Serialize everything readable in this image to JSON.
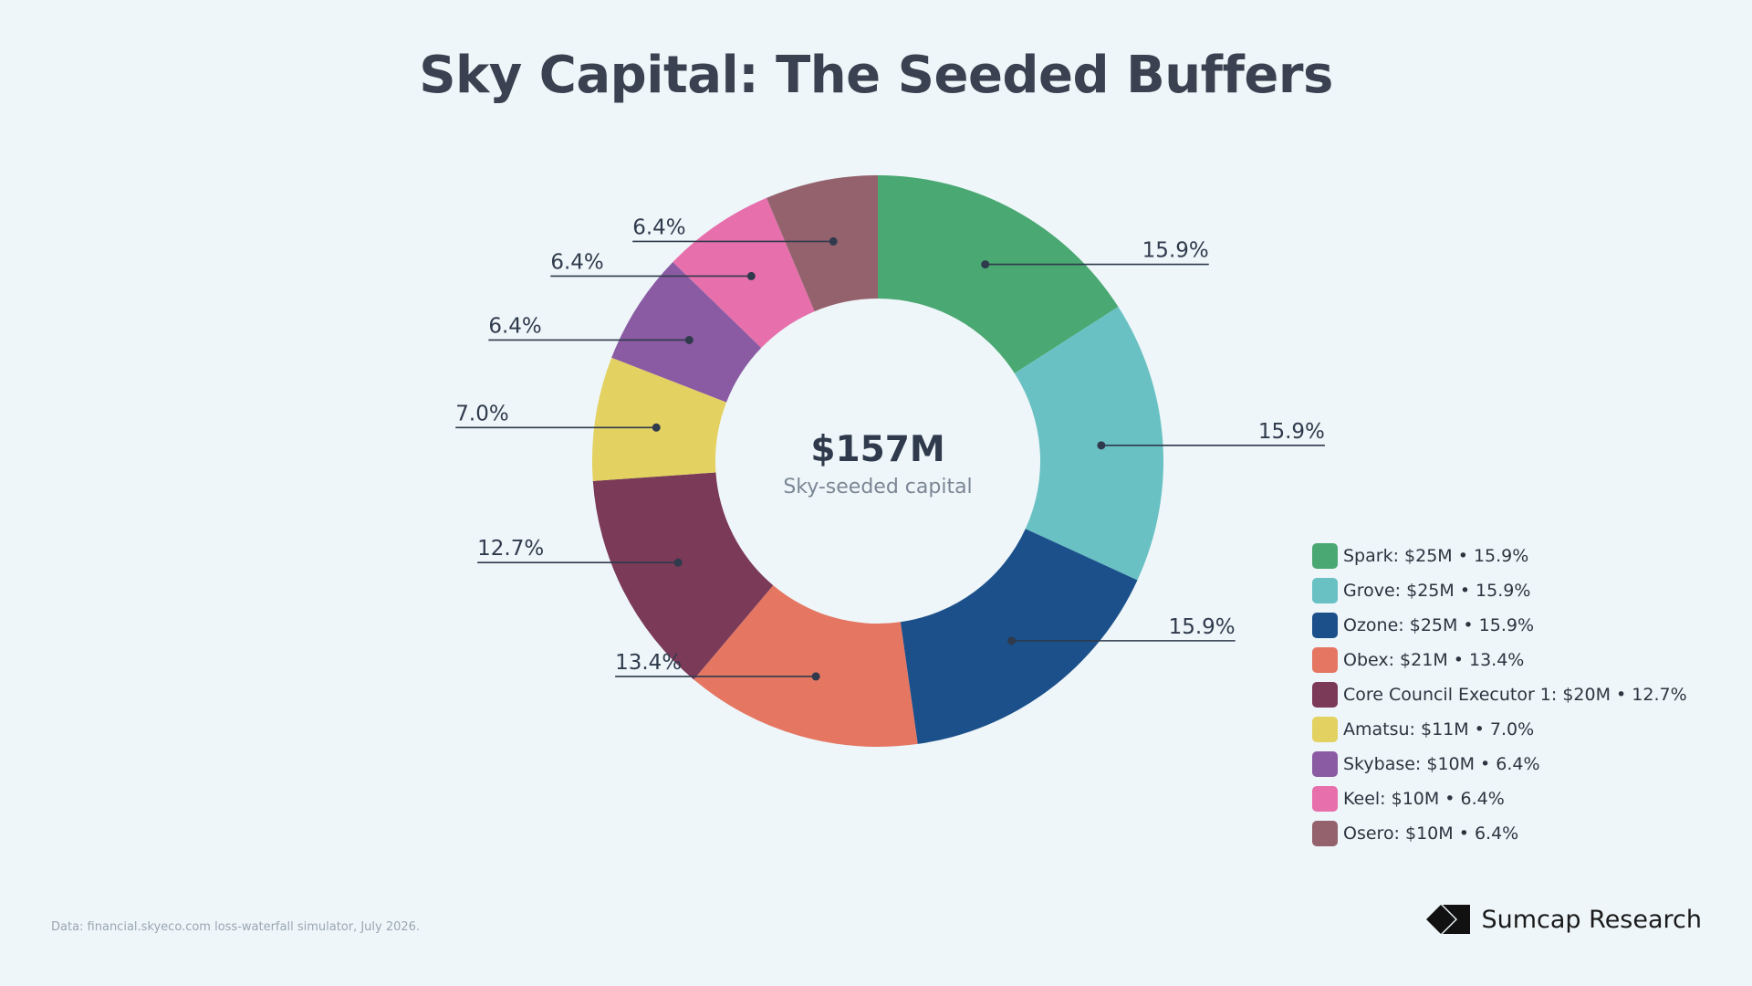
{
  "title": "Sky Capital: The Seeded Buffers",
  "center": {
    "value": "$157M",
    "label": "Sky-seeded capital"
  },
  "source": "Data: financial.skyeco.com loss-waterfall simulator, July 2026.",
  "brand": {
    "name": "Sumcap Research",
    "icon": "sumcap-logo-icon"
  },
  "chart_data": {
    "type": "pie",
    "variant": "donut",
    "total": 157,
    "unit": "$M",
    "legend_position": "right",
    "slices": [
      {
        "name": "Spark",
        "value": 25,
        "percent": "15.9%",
        "legend": "Spark: $25M • 15.9%",
        "color": "#4aa872"
      },
      {
        "name": "Grove",
        "value": 25,
        "percent": "15.9%",
        "legend": "Grove: $25M • 15.9%",
        "color": "#69c1c3"
      },
      {
        "name": "Ozone",
        "value": 25,
        "percent": "15.9%",
        "legend": "Ozone: $25M • 15.9%",
        "color": "#1b508b"
      },
      {
        "name": "Obex",
        "value": 21,
        "percent": "13.4%",
        "legend": "Obex: $21M • 13.4%",
        "color": "#e57662"
      },
      {
        "name": "Core Council Executor 1",
        "value": 20,
        "percent": "12.7%",
        "legend": "Core Council Executor 1: $20M • 12.7%",
        "color": "#7a3a58"
      },
      {
        "name": "Amatsu",
        "value": 11,
        "percent": "7.0%",
        "legend": "Amatsu: $11M • 7.0%",
        "color": "#e3d261"
      },
      {
        "name": "Skybase",
        "value": 10,
        "percent": "6.4%",
        "legend": "Skybase: $10M • 6.4%",
        "color": "#8a5ba3"
      },
      {
        "name": "Keel",
        "value": 10,
        "percent": "6.4%",
        "legend": "Keel: $10M • 6.4%",
        "color": "#e76fac"
      },
      {
        "name": "Osero",
        "value": 10,
        "percent": "6.4%",
        "legend": "Osero: $10M • 6.4%",
        "color": "#94626c"
      }
    ]
  }
}
